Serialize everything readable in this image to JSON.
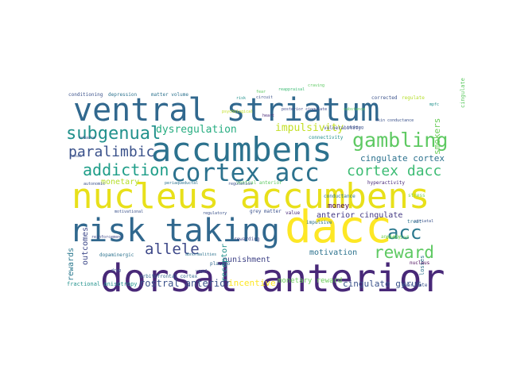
{
  "colors": {
    "background": "#ffffff",
    "palette": [
      "#440154",
      "#3b528b",
      "#2c728e",
      "#21918c",
      "#28ae80",
      "#5ec962",
      "#addc30",
      "#fde725"
    ]
  },
  "words": [
    {
      "text": "nucleus accumbens",
      "color": "#e8e01a"
    },
    {
      "text": "ventral striatum",
      "color": "#31688e"
    },
    {
      "text": "accumbens",
      "color": "#2c728e"
    },
    {
      "text": "dorsal anterior",
      "color": "#482878"
    },
    {
      "text": "risk taking",
      "color": "#31688e"
    },
    {
      "text": "dacc",
      "color": "#fde725"
    },
    {
      "text": "cortex acc",
      "color": "#2c728e"
    },
    {
      "text": "gambling",
      "color": "#5ec962"
    },
    {
      "text": "subgenual",
      "color": "#21918c"
    },
    {
      "text": "addiction",
      "color": "#1f9e89"
    },
    {
      "text": "cortex dacc",
      "color": "#3dbc74"
    },
    {
      "text": "paralimbic",
      "color": "#3b528b"
    },
    {
      "text": "acc",
      "color": "#2a788e"
    },
    {
      "text": "reward",
      "color": "#5ec962"
    },
    {
      "text": "allele",
      "color": "#3e4989"
    },
    {
      "text": "impulsivity",
      "color": "#c2df23"
    },
    {
      "text": "dysregulation",
      "color": "#27ad81"
    },
    {
      "text": "cingulate cortex",
      "color": "#2c728e"
    },
    {
      "text": "monetary",
      "color": "#b5de2b"
    },
    {
      "text": "smokers",
      "color": "#6ccd5a"
    },
    {
      "text": "anterior cingulate",
      "color": "#443983"
    },
    {
      "text": "motivation",
      "color": "#2c728e"
    },
    {
      "text": "punishment",
      "color": "#414487"
    },
    {
      "text": "rostral anterior",
      "color": "#3b528b"
    },
    {
      "text": "cingulate gyrus",
      "color": "#3b528b"
    },
    {
      "text": "rewards",
      "color": "#2a788e"
    },
    {
      "text": "outcomes",
      "color": "#3e4989"
    },
    {
      "text": "monetary reward",
      "color": "#6ccd5a"
    },
    {
      "text": "incentive",
      "color": "#fde725"
    },
    {
      "text": "receptor",
      "color": "#21918c"
    },
    {
      "text": "money",
      "color": "#440154"
    },
    {
      "text": "fractional anisotropy",
      "color": "#21918c"
    },
    {
      "text": "orbitofrontal cortex",
      "color": "#31688e"
    },
    {
      "text": "conditioning",
      "color": "#3b528b"
    },
    {
      "text": "depression",
      "color": "#2c728e"
    },
    {
      "text": "matter volume",
      "color": "#2c728e"
    },
    {
      "text": "connectivity",
      "color": "#21918c"
    },
    {
      "text": "vulnerability",
      "color": "#3e4989"
    },
    {
      "text": "corrected",
      "color": "#3b528b"
    },
    {
      "text": "regulate",
      "color": "#b5de2b"
    },
    {
      "text": "losses",
      "color": "#2c728e"
    },
    {
      "text": "nucleus",
      "color": "#440154"
    },
    {
      "text": "near rate",
      "color": "#3b528b"
    },
    {
      "text": "grey matter",
      "color": "#3b528b"
    },
    {
      "text": "value",
      "color": "#482878"
    },
    {
      "text": "impulsive",
      "color": "#2c728e"
    },
    {
      "text": "rewarding",
      "color": "#3e4989"
    },
    {
      "text": "dopaminergic",
      "color": "#2c728e"
    },
    {
      "text": "placebo",
      "color": "#31688e"
    },
    {
      "text": "anxiety",
      "color": "#7ad151"
    },
    {
      "text": "covaried",
      "color": "#5ec962"
    },
    {
      "text": "stress",
      "color": "#7ad151"
    },
    {
      "text": "treat",
      "color": "#2c728e"
    },
    {
      "text": "conductance",
      "color": "#2c728e"
    },
    {
      "text": "ventral anterior",
      "color": "#5ec962"
    },
    {
      "text": "hyperactivity",
      "color": "#482878"
    },
    {
      "text": "regulation",
      "color": "#3b528b"
    },
    {
      "text": "periaqueductal",
      "color": "#2c728e"
    },
    {
      "text": "autonomic",
      "color": "#3b528b"
    },
    {
      "text": "tobacco",
      "color": "#3b528b"
    },
    {
      "text": "risk",
      "color": "#21918c"
    },
    {
      "text": "skin conductance",
      "color": "#3b528b"
    },
    {
      "text": "cingulate",
      "color": "#5ec962"
    },
    {
      "text": "psychological",
      "color": "#c2df23"
    },
    {
      "text": "circuit",
      "color": "#3b528b"
    },
    {
      "text": "heart",
      "color": "#482878"
    },
    {
      "text": "craving",
      "color": "#5ec962"
    },
    {
      "text": "regulatory",
      "color": "#3b528b"
    },
    {
      "text": "substance",
      "color": "#5ec962"
    },
    {
      "text": "vagal",
      "color": "#3b528b"
    },
    {
      "text": "drug",
      "color": "#3b528b"
    },
    {
      "text": "reinforcement",
      "color": "#3e4989"
    },
    {
      "text": "reappraisal",
      "color": "#3dbc74"
    },
    {
      "text": "posterior cingulate",
      "color": "#3e4989"
    },
    {
      "text": "mpfc",
      "color": "#21918c"
    },
    {
      "text": "motivational",
      "color": "#3b528b"
    },
    {
      "text": "striatal",
      "color": "#3b528b"
    },
    {
      "text": "abnormalities",
      "color": "#2c728e"
    },
    {
      "text": "basal",
      "color": "#3b528b"
    },
    {
      "text": "fear",
      "color": "#5ec962"
    },
    {
      "text": "smoking",
      "color": "#3b528b"
    }
  ]
}
